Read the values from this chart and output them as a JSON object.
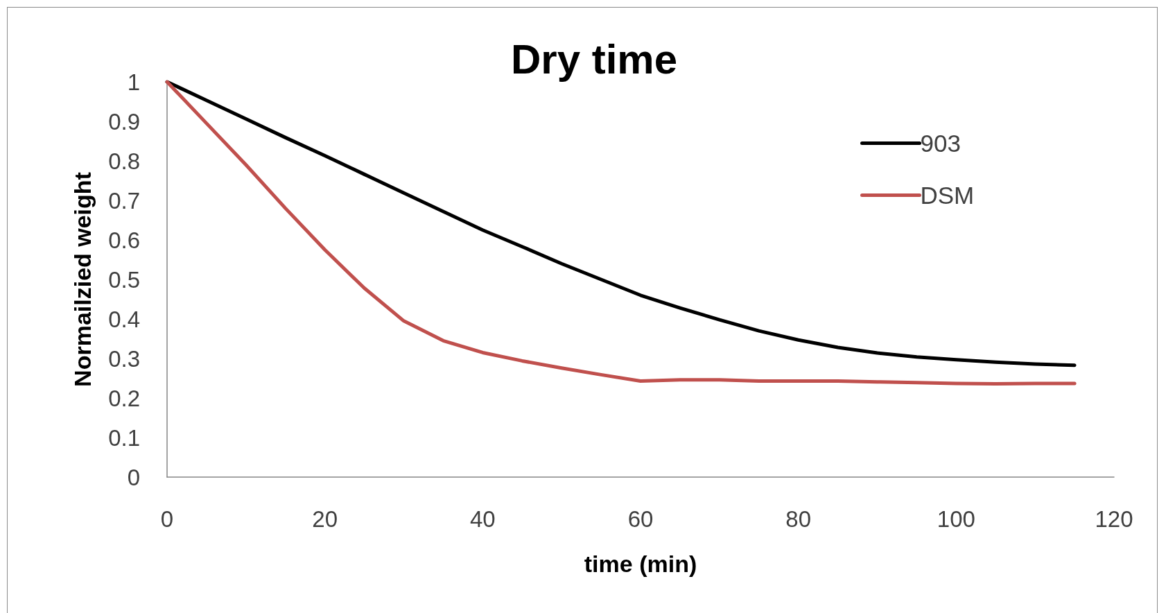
{
  "chart_data": {
    "type": "line",
    "title": "Dry time",
    "xlabel": "time (min)",
    "ylabel": "Normailzied weight",
    "x": [
      0,
      5,
      10,
      15,
      20,
      25,
      30,
      35,
      40,
      45,
      50,
      55,
      60,
      65,
      70,
      75,
      80,
      85,
      90,
      95,
      100,
      105,
      110,
      115
    ],
    "series": [
      {
        "name": "903",
        "color": "#000000",
        "values": [
          1,
          0.953,
          0.906,
          0.859,
          0.813,
          0.766,
          0.719,
          0.672,
          0.625,
          0.583,
          0.54,
          0.5,
          0.46,
          0.428,
          0.398,
          0.37,
          0.347,
          0.328,
          0.314,
          0.304,
          0.297,
          0.291,
          0.286,
          0.283
        ]
      },
      {
        "name": "DSM",
        "color": "#c0504d",
        "values": [
          1,
          0.895,
          0.79,
          0.68,
          0.575,
          0.478,
          0.395,
          0.345,
          0.315,
          0.294,
          0.276,
          0.259,
          0.243,
          0.246,
          0.246,
          0.243,
          0.243,
          0.243,
          0.241,
          0.239,
          0.237,
          0.236,
          0.237,
          0.237
        ]
      }
    ],
    "xlim": [
      0,
      120
    ],
    "xticks": [
      0,
      20,
      40,
      60,
      80,
      100,
      120
    ],
    "ylim": [
      0,
      1
    ],
    "yticks": [
      0,
      0.1,
      0.2,
      0.3,
      0.4,
      0.5,
      0.6,
      0.7,
      0.8,
      0.9,
      1
    ],
    "legend": "top right",
    "marker": "none",
    "line_style": "solid"
  }
}
